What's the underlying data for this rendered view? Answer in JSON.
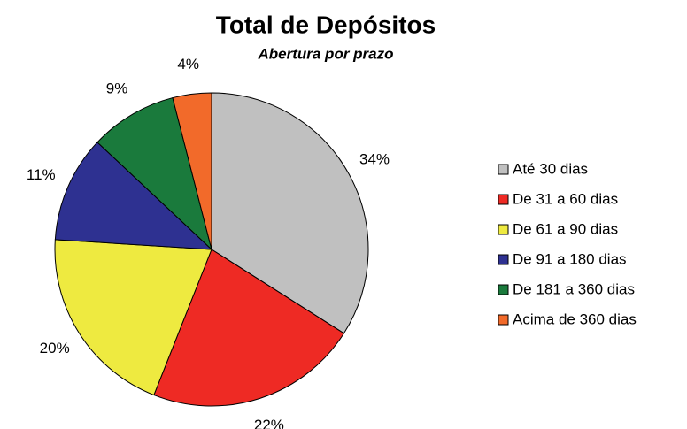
{
  "chart_data": {
    "type": "pie",
    "title": "Total de Depósitos",
    "subtitle": "Abertura por prazo",
    "categories": [
      "Até 30 dias",
      "De 31 a 60 dias",
      "De 61 a 90 dias",
      "De 91 a 180 dias",
      "De 181 a 360 dias",
      "Acima de 360 dias"
    ],
    "values": [
      34,
      22,
      20,
      11,
      9,
      4
    ],
    "value_labels": [
      "34%",
      "22%",
      "20%",
      "11%",
      "9%",
      "4%"
    ],
    "colors": [
      "#c0c0c0",
      "#ee2a24",
      "#eeea40",
      "#2e3191",
      "#1a7a3c",
      "#f26a2a"
    ],
    "legend": "right"
  }
}
